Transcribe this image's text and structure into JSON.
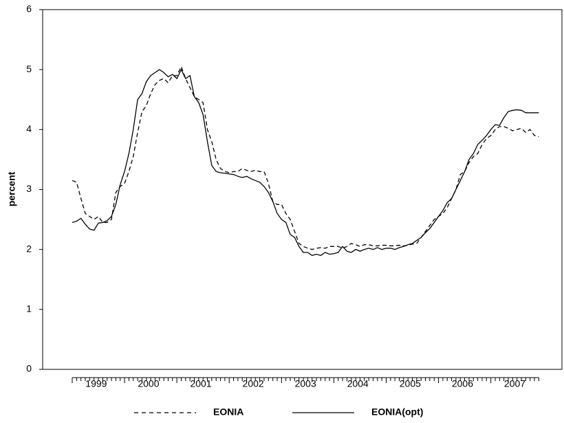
{
  "chart_data": {
    "type": "line",
    "y_label": "percent",
    "categories": [
      null,
      null,
      null,
      null,
      null,
      null,
      "1999",
      null,
      null,
      null,
      null,
      null,
      null,
      null,
      null,
      null,
      null,
      null,
      "2000",
      null,
      null,
      null,
      null,
      null,
      null,
      null,
      null,
      null,
      null,
      null,
      "2001",
      null,
      null,
      null,
      null,
      null,
      null,
      null,
      null,
      null,
      null,
      null,
      "2002",
      null,
      null,
      null,
      null,
      null,
      null,
      null,
      null,
      null,
      null,
      null,
      "2003",
      null,
      null,
      null,
      null,
      null,
      null,
      null,
      null,
      null,
      null,
      null,
      "2004",
      null,
      null,
      null,
      null,
      null,
      null,
      null,
      null,
      null,
      null,
      null,
      "2005",
      null,
      null,
      null,
      null,
      null,
      null,
      null,
      null,
      null,
      null,
      null,
      "2006",
      null,
      null,
      null,
      null,
      null,
      null,
      null,
      null,
      null,
      null,
      null,
      "2007",
      null,
      null,
      null,
      null,
      null
    ],
    "series": [
      {
        "name": "EONIA",
        "color": "#000000",
        "linestyle": "dashed",
        "values": [
          3.15,
          3.12,
          2.85,
          2.6,
          2.55,
          2.5,
          2.55,
          2.45,
          2.45,
          2.5,
          2.95,
          3.05,
          3.1,
          3.3,
          3.55,
          3.95,
          4.3,
          4.4,
          4.6,
          4.75,
          4.82,
          4.85,
          4.78,
          4.9,
          4.9,
          5.05,
          4.85,
          4.7,
          4.55,
          4.5,
          4.45,
          4.0,
          3.8,
          3.5,
          3.35,
          3.3,
          3.28,
          3.3,
          3.3,
          3.35,
          3.32,
          3.3,
          3.32,
          3.3,
          3.3,
          3.1,
          2.8,
          2.75,
          2.75,
          2.6,
          2.5,
          2.3,
          2.1,
          2.05,
          2.02,
          2.0,
          2.02,
          2.03,
          2.02,
          2.05,
          2.05,
          2.05,
          2.02,
          2.05,
          2.1,
          2.08,
          2.05,
          2.08,
          2.08,
          2.06,
          2.06,
          2.07,
          2.07,
          2.06,
          2.06,
          2.07,
          2.06,
          2.07,
          2.09,
          2.1,
          2.2,
          2.3,
          2.4,
          2.5,
          2.55,
          2.6,
          2.7,
          2.85,
          3.0,
          3.25,
          3.3,
          3.45,
          3.55,
          3.6,
          3.75,
          3.85,
          3.9,
          4.0,
          4.05,
          4.05,
          4.02,
          3.98,
          4.0,
          4.02,
          3.95,
          4.0,
          3.9,
          3.88
        ]
      },
      {
        "name": "EONIA(opt)",
        "color": "#000000",
        "linestyle": "solid",
        "values": [
          2.45,
          2.47,
          2.52,
          2.42,
          2.34,
          2.32,
          2.44,
          2.45,
          2.48,
          2.55,
          2.75,
          3.08,
          3.3,
          3.6,
          4.0,
          4.5,
          4.6,
          4.8,
          4.9,
          4.95,
          5.0,
          4.95,
          4.88,
          4.92,
          4.85,
          5.0,
          4.85,
          4.9,
          4.55,
          4.45,
          4.25,
          3.8,
          3.4,
          3.3,
          3.28,
          3.27,
          3.26,
          3.25,
          3.22,
          3.2,
          3.22,
          3.18,
          3.15,
          3.12,
          3.05,
          2.95,
          2.8,
          2.6,
          2.5,
          2.45,
          2.25,
          2.2,
          2.05,
          1.95,
          1.95,
          1.9,
          1.92,
          1.9,
          1.95,
          1.92,
          1.93,
          1.95,
          2.05,
          1.97,
          1.95,
          2.0,
          1.97,
          2.0,
          2.02,
          2.0,
          2.03,
          2.0,
          2.02,
          2.02,
          2.0,
          2.03,
          2.05,
          2.08,
          2.1,
          2.15,
          2.2,
          2.28,
          2.35,
          2.45,
          2.55,
          2.65,
          2.78,
          2.85,
          3.0,
          3.15,
          3.3,
          3.5,
          3.6,
          3.75,
          3.82,
          3.9,
          4.0,
          4.08,
          4.07,
          4.2,
          4.3,
          4.32,
          4.33,
          4.32,
          4.28,
          4.28,
          4.28,
          4.28
        ]
      }
    ],
    "ylim": [
      0,
      6
    ],
    "yticks": [
      0,
      1,
      2,
      3,
      4,
      5,
      6
    ],
    "grid": false,
    "legend": "bottom"
  }
}
